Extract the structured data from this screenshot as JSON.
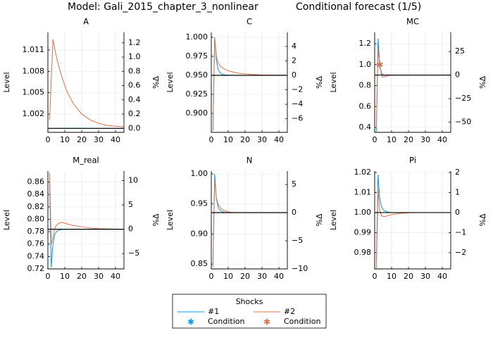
{
  "title": "Model: Gali_2015_chapter_3_nonlinear",
  "subtitle": "Conditional forecast  (1/5)",
  "legend": {
    "title": "Shocks",
    "lines": [
      {
        "name": "#1",
        "color": "#009af9"
      },
      {
        "name": "#2",
        "color": "#e26f46"
      }
    ],
    "markers": [
      {
        "name": "Condition",
        "color": "#009af9"
      },
      {
        "name": "Condition",
        "color": "#e26f46"
      }
    ]
  },
  "chart_data": [
    {
      "type": "line",
      "title": "A",
      "ylabel": "Level",
      "y2label": "%Δ",
      "x": [
        1,
        2,
        3,
        4,
        5,
        6,
        8,
        10,
        12,
        15,
        20,
        25,
        30,
        35,
        40,
        45
      ],
      "xlim": [
        0,
        45
      ],
      "xticks": [
        0,
        10,
        20,
        30,
        40
      ],
      "ylim": [
        0.99944,
        1.01346
      ],
      "yticks": [
        1.002,
        1.005,
        1.008,
        1.011
      ],
      "y2lim": [
        -0.056,
        1.346
      ],
      "y2ticks": [
        {
          "value": 0,
          "label": "0.0"
        },
        0.2,
        0.4,
        0.6,
        0.8,
        {
          "value": 1,
          "label": "1.0"
        },
        1.2
      ],
      "steady_state": 1.0,
      "steady_state_color": "#000000",
      "series": [
        {
          "values": [
            1,
            1,
            1,
            1,
            1,
            1,
            1,
            1,
            1,
            1,
            1,
            1,
            1,
            1,
            1,
            1
          ]
        },
        {
          "values": [
            1.0012,
            1.0068,
            1.0125,
            1.0112,
            1.0101,
            1.0091,
            1.0074,
            1.006,
            1.0048,
            1.0035,
            1.002,
            1.0012,
            1.0007,
            1.0004,
            1.0003,
            1.0002
          ]
        }
      ]
    },
    {
      "type": "line",
      "title": "C",
      "ylabel": "Level",
      "y2label": "%Δ",
      "x": [
        1,
        2,
        3,
        4,
        5,
        6,
        8,
        10,
        12,
        15,
        20,
        25,
        30,
        35,
        40,
        45
      ],
      "xlim": [
        0,
        45
      ],
      "xticks": [
        0,
        10,
        20,
        30,
        40
      ],
      "ylim": [
        0.875,
        1.0065
      ],
      "yticks": [
        {
          "value": 0.9,
          "label": "0.900"
        },
        {
          "value": 0.925,
          "label": "0.925"
        },
        {
          "value": 0.95,
          "label": "0.950"
        },
        {
          "value": 0.975,
          "label": "0.975"
        },
        {
          "value": 1,
          "label": "1.000"
        }
      ],
      "y2lim": [
        -7.89,
        5.95
      ],
      "y2ticks": [
        {
          "value": -6,
          "label": "−6"
        },
        {
          "value": -4,
          "label": "−4"
        },
        {
          "value": -2,
          "label": "−2"
        },
        0,
        2,
        4
      ],
      "steady_state": 0.95,
      "steady_state_color": "#000000",
      "series": [
        {
          "values": [
            0.878,
            1.0,
            0.97,
            0.958,
            0.954,
            0.952,
            0.9505,
            0.9502,
            0.9501,
            0.95,
            0.95,
            0.95,
            0.95,
            0.95,
            0.95,
            0.95
          ]
        },
        {
          "values": [
            0.877,
            1.0,
            0.975,
            0.967,
            0.963,
            0.961,
            0.958,
            0.956,
            0.955,
            0.953,
            0.952,
            0.951,
            0.9505,
            0.9503,
            0.9502,
            0.9501
          ]
        }
      ]
    },
    {
      "type": "line",
      "title": "MC",
      "ylabel": "Level",
      "y2label": "%Δ",
      "x": [
        1,
        2,
        3,
        4,
        5,
        6,
        8,
        10,
        12,
        15,
        20,
        25,
        30,
        35,
        40,
        45
      ],
      "xlim": [
        0,
        45
      ],
      "xticks": [
        0,
        10,
        20,
        30,
        40
      ],
      "ylim": [
        0.353,
        1.308
      ],
      "yticks": [
        0.4,
        0.6,
        0.8,
        {
          "value": 1,
          "label": "1.0"
        },
        1.2
      ],
      "y2lim": [
        -60.8,
        45.3
      ],
      "y2ticks": [
        {
          "value": -50,
          "label": "−50"
        },
        {
          "value": -25,
          "label": "−25"
        },
        0,
        25
      ],
      "steady_state": 0.9,
      "steady_state_color": "#000000",
      "series": [
        {
          "values": [
            0.36,
            1.25,
            1.0,
            0.92,
            0.905,
            0.9,
            0.9,
            0.9,
            0.9,
            0.9,
            0.9,
            0.9,
            0.9,
            0.9,
            0.9,
            0.9
          ]
        },
        {
          "values": [
            0.4,
            1.15,
            1.0,
            0.9,
            0.88,
            0.885,
            0.895,
            0.898,
            0.899,
            0.9,
            0.9,
            0.9,
            0.9,
            0.9,
            0.9,
            0.9
          ]
        }
      ],
      "conditions": [
        {
          "x": [
            3
          ],
          "values": [
            1.0
          ]
        },
        {
          "x": [
            3
          ],
          "values": [
            1.0
          ]
        }
      ]
    },
    {
      "type": "line",
      "title": "M_real",
      "ylabel": "Level",
      "y2label": "%Δ",
      "x": [
        1,
        2,
        3,
        4,
        5,
        6,
        8,
        10,
        12,
        15,
        20,
        25,
        30,
        35,
        40,
        45
      ],
      "xlim": [
        0,
        45
      ],
      "xticks": [
        0,
        10,
        20,
        30,
        40
      ],
      "ylim": [
        0.72,
        0.8777
      ],
      "yticks": [
        0.72,
        0.74,
        0.76,
        0.78,
        {
          "value": 0.8,
          "label": "0.80"
        },
        0.82,
        0.84,
        0.86
      ],
      "y2lim": [
        -8.16,
        11.95
      ],
      "y2ticks": [
        {
          "value": -5,
          "label": "−5"
        },
        0,
        5,
        10
      ],
      "steady_state": 0.784,
      "steady_state_color": "#000000",
      "series": [
        {
          "values": [
            0.86,
            0.722,
            0.76,
            0.775,
            0.78,
            0.782,
            0.7835,
            0.784,
            0.784,
            0.784,
            0.784,
            0.784,
            0.784,
            0.784,
            0.784,
            0.784
          ]
        },
        {
          "values": [
            0.875,
            0.76,
            0.77,
            0.785,
            0.79,
            0.793,
            0.795,
            0.794,
            0.792,
            0.79,
            0.788,
            0.786,
            0.785,
            0.7845,
            0.7842,
            0.7841
          ]
        }
      ]
    },
    {
      "type": "line",
      "title": "N",
      "ylabel": "Level",
      "y2label": "%Δ",
      "x": [
        1,
        2,
        3,
        4,
        5,
        6,
        8,
        10,
        12,
        15,
        20,
        25,
        30,
        35,
        40,
        45
      ],
      "xlim": [
        0,
        45
      ],
      "xticks": [
        0,
        10,
        20,
        30,
        40
      ],
      "ylim": [
        0.842,
        1.0047
      ],
      "yticks": [
        0.85,
        {
          "value": 0.9,
          "label": "0.90"
        },
        0.95,
        {
          "value": 1,
          "label": "1.00"
        }
      ],
      "y2lim": [
        -10.0,
        7.39
      ],
      "y2ticks": [
        {
          "value": -10,
          "label": "−10"
        },
        {
          "value": -5,
          "label": "−5"
        },
        0,
        5
      ],
      "steady_state": 0.9356,
      "steady_state_color": "#000000",
      "series": [
        {
          "values": [
            0.85,
            1.0,
            0.96,
            0.945,
            0.94,
            0.938,
            0.936,
            0.9357,
            0.9356,
            0.9356,
            0.9356,
            0.9356,
            0.9356,
            0.9356,
            0.9356,
            0.9356
          ]
        },
        {
          "values": [
            0.845,
            0.99,
            0.96,
            0.95,
            0.945,
            0.942,
            0.939,
            0.937,
            0.936,
            0.9357,
            0.9356,
            0.9356,
            0.9356,
            0.9356,
            0.9356,
            0.9356
          ]
        }
      ]
    },
    {
      "type": "line",
      "title": "Pi",
      "ylabel": "Level",
      "y2label": "%Δ",
      "x": [
        1,
        2,
        3,
        4,
        5,
        6,
        8,
        10,
        12,
        15,
        20,
        25,
        30,
        35,
        40,
        45
      ],
      "xlim": [
        0,
        45
      ],
      "xticks": [
        0,
        10,
        20,
        30,
        40
      ],
      "ylim": [
        0.9719,
        1.0207
      ],
      "yticks": [
        0.98,
        0.99,
        {
          "value": 1,
          "label": "1.00"
        },
        1.01,
        1.02
      ],
      "y2lim": [
        -2.81,
        2.07
      ],
      "y2ticks": [
        {
          "value": -2,
          "label": "−2"
        },
        {
          "value": -1,
          "label": "−1"
        },
        0,
        1,
        2
      ],
      "steady_state": 1.0,
      "steady_state_color": "#000000",
      "series": [
        {
          "values": [
            0.975,
            1.019,
            1.007,
            1.003,
            1.0015,
            1.0008,
            1.0002,
            1.0,
            1.0,
            1.0,
            1.0,
            1.0,
            1.0,
            1.0,
            1.0,
            1.0
          ]
        },
        {
          "values": [
            0.972,
            1.012,
            1.001,
            0.9985,
            0.998,
            0.998,
            0.9985,
            0.999,
            0.9993,
            0.9996,
            0.9999,
            1.0,
            1.0,
            1.0,
            1.0,
            1.0
          ]
        }
      ]
    }
  ]
}
